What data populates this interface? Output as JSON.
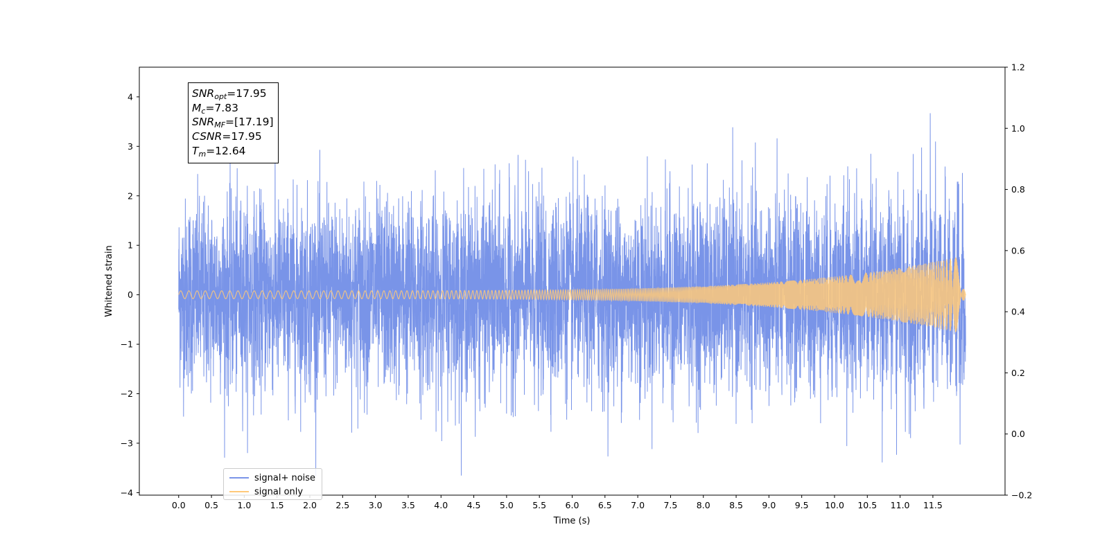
{
  "chart_data": {
    "type": "line",
    "xlabel": "Time (s)",
    "ylabel": "Whitened strain",
    "xlim": [
      -0.6,
      12.6
    ],
    "ylim": [
      -4.05,
      4.6
    ],
    "y2lim": [
      -0.2,
      1.2
    ],
    "x_ticks": [
      "0.0",
      "0.5",
      "1.0",
      "1.5",
      "2.0",
      "2.5",
      "3.0",
      "3.5",
      "4.0",
      "4.5",
      "5.0",
      "5.5",
      "6.0",
      "6.5",
      "7.0",
      "7.5",
      "8.0",
      "8.5",
      "9.0",
      "9.5",
      "10.0",
      "10.5",
      "11.0",
      "11.5"
    ],
    "y_ticks": [
      -4,
      -3,
      -2,
      -1,
      0,
      1,
      2,
      3,
      4
    ],
    "y2_ticks": [
      "−0.2",
      "0.0",
      "0.2",
      "0.4",
      "0.6",
      "0.8",
      "1.0",
      "1.2"
    ],
    "x_range": [
      0.0,
      12.0
    ],
    "series": [
      {
        "name": "signal+ noise",
        "color": "#7994e8",
        "description_values": {
          "noise_rms": 0.95,
          "max_peak": 4.22,
          "min_peak": -3.67
        }
      },
      {
        "name": "signal only",
        "color": "#ffc979",
        "envelope": {
          "start": 0.08,
          "end": 0.8
        }
      }
    ],
    "legend": {
      "location": "lower-left"
    },
    "annotation": {
      "lines": [
        {
          "sym": "SNR",
          "sub": "opt",
          "value": "=17.95"
        },
        {
          "sym": "M",
          "sub": "c",
          "value": "=7.83"
        },
        {
          "sym": "SNR",
          "sub": "MF",
          "value": "=[17.19]"
        },
        {
          "sym": "CSNR",
          "sub": "",
          "value": "=17.95"
        },
        {
          "sym": "T",
          "sub": "m",
          "value": "=12.64"
        }
      ]
    },
    "grid": false
  }
}
